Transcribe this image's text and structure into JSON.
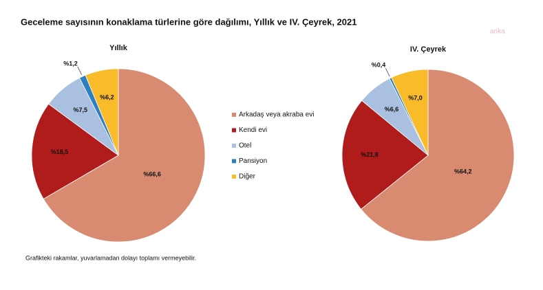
{
  "title": "Geceleme sayısının konaklama türlerine göre dağılımı, Yıllık ve IV. Çeyrek, 2021",
  "watermark": "anka",
  "note": "Grafikteki rakamlar, yuvarlamadan dolayı toplamı vermeyebilir.",
  "chart_data": [
    {
      "type": "pie",
      "title": "Yıllık",
      "categories": [
        "Arkadaş veya akraba evi",
        "Kendi evi",
        "Otel",
        "Pansiyon",
        "Diğer"
      ],
      "values": [
        66.6,
        18.5,
        7.5,
        1.2,
        6.2
      ],
      "value_labels": [
        "%66,6",
        "%18,5",
        "%7,5",
        "%1,2",
        "%6,2"
      ],
      "colors": [
        "#d98b72",
        "#b01c1c",
        "#a9c0e0",
        "#2e7fc0",
        "#f9bb2a"
      ]
    },
    {
      "type": "pie",
      "title": "IV. Çeyrek",
      "categories": [
        "Arkadaş veya akraba evi",
        "Kendi evi",
        "Otel",
        "Pansiyon",
        "Diğer"
      ],
      "values": [
        64.2,
        21.8,
        6.6,
        0.4,
        7.0
      ],
      "value_labels": [
        "%64,2",
        "%21,8",
        "%6,6",
        "%0,4",
        "%7,0"
      ],
      "colors": [
        "#d98b72",
        "#b01c1c",
        "#a9c0e0",
        "#2e7fc0",
        "#f9bb2a"
      ]
    }
  ]
}
